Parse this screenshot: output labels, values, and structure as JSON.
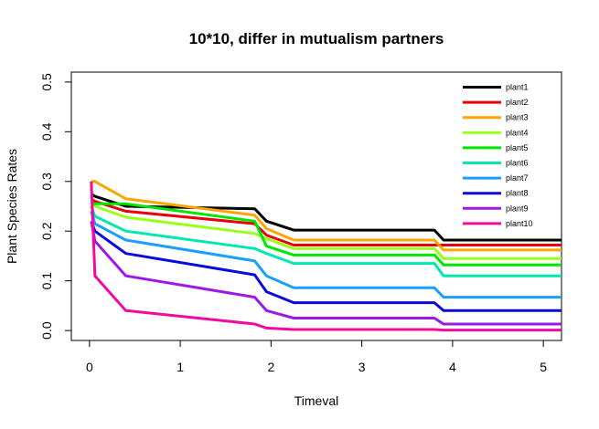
{
  "chart_data": {
    "type": "line",
    "title": "10*10, differ in mutualism partners",
    "xlabel": "Timeval",
    "ylabel": "Plant Species Rates",
    "xlim": [
      -0.2,
      5.2
    ],
    "ylim": [
      -0.02,
      0.52
    ],
    "xticks": [
      0,
      1,
      2,
      3,
      4,
      5
    ],
    "yticks": [
      0.0,
      0.1,
      0.2,
      0.3,
      0.4,
      0.5
    ],
    "xtick_labels": [
      "0",
      "1",
      "2",
      "3",
      "4",
      "5"
    ],
    "ytick_labels": [
      "0.0",
      "0.1",
      "0.2",
      "0.3",
      "0.4",
      "0.5"
    ],
    "grid": false,
    "legend_position": "top-right",
    "series": [
      {
        "name": "plant1",
        "color": "#000000",
        "x": [
          0.02,
          0.06,
          0.4,
          1.82,
          1.95,
          2.25,
          3.8,
          3.9,
          5.2
        ],
        "y": [
          0.275,
          0.27,
          0.25,
          0.245,
          0.22,
          0.202,
          0.202,
          0.182,
          0.182
        ]
      },
      {
        "name": "plant2",
        "color": "#e8000b",
        "x": [
          0.02,
          0.06,
          0.4,
          1.82,
          1.95,
          2.25,
          3.8,
          3.9,
          5.2
        ],
        "y": [
          0.265,
          0.26,
          0.24,
          0.215,
          0.192,
          0.172,
          0.172,
          0.172,
          0.172
        ]
      },
      {
        "name": "plant3",
        "color": "#ffa500",
        "x": [
          0.02,
          0.06,
          0.4,
          1.82,
          1.95,
          2.25,
          3.8,
          3.9,
          5.2
        ],
        "y": [
          0.3,
          0.3,
          0.265,
          0.232,
          0.205,
          0.182,
          0.182,
          0.162,
          0.162
        ]
      },
      {
        "name": "plant4",
        "color": "#9aff1a",
        "x": [
          0.02,
          0.06,
          0.4,
          1.82,
          1.95,
          2.25,
          3.8,
          3.9,
          5.2
        ],
        "y": [
          0.26,
          0.25,
          0.228,
          0.195,
          0.185,
          0.165,
          0.165,
          0.145,
          0.145
        ]
      },
      {
        "name": "plant5",
        "color": "#00e600",
        "x": [
          0.02,
          0.06,
          0.4,
          1.82,
          1.95,
          2.25,
          3.8,
          3.9,
          5.2
        ],
        "y": [
          0.255,
          0.255,
          0.255,
          0.22,
          0.17,
          0.152,
          0.152,
          0.132,
          0.132
        ]
      },
      {
        "name": "plant6",
        "color": "#00e8b0",
        "x": [
          0.02,
          0.06,
          0.4,
          1.82,
          1.95,
          2.25,
          3.8,
          3.9,
          5.2
        ],
        "y": [
          0.25,
          0.23,
          0.2,
          0.165,
          0.155,
          0.135,
          0.135,
          0.11,
          0.11
        ]
      },
      {
        "name": "plant7",
        "color": "#1a9fff",
        "x": [
          0.02,
          0.06,
          0.4,
          1.82,
          1.95,
          2.25,
          3.8,
          3.9,
          5.2
        ],
        "y": [
          0.24,
          0.215,
          0.182,
          0.14,
          0.11,
          0.086,
          0.086,
          0.067,
          0.067
        ]
      },
      {
        "name": "plant8",
        "color": "#0a0ad9",
        "x": [
          0.02,
          0.06,
          0.4,
          1.82,
          1.95,
          2.25,
          3.8,
          3.9,
          5.2
        ],
        "y": [
          0.22,
          0.2,
          0.155,
          0.112,
          0.078,
          0.056,
          0.056,
          0.04,
          0.04
        ]
      },
      {
        "name": "plant9",
        "color": "#9a19e6",
        "x": [
          0.02,
          0.06,
          0.4,
          1.82,
          1.95,
          2.25,
          3.8,
          3.9,
          5.2
        ],
        "y": [
          0.22,
          0.18,
          0.11,
          0.067,
          0.04,
          0.025,
          0.025,
          0.013,
          0.013
        ]
      },
      {
        "name": "plant10",
        "color": "#f00aa0",
        "x": [
          0.02,
          0.06,
          0.4,
          1.82,
          1.95,
          2.25,
          3.8,
          3.9,
          5.2
        ],
        "y": [
          0.3,
          0.11,
          0.04,
          0.013,
          0.005,
          0.002,
          0.002,
          0.001,
          0.001
        ]
      }
    ]
  }
}
